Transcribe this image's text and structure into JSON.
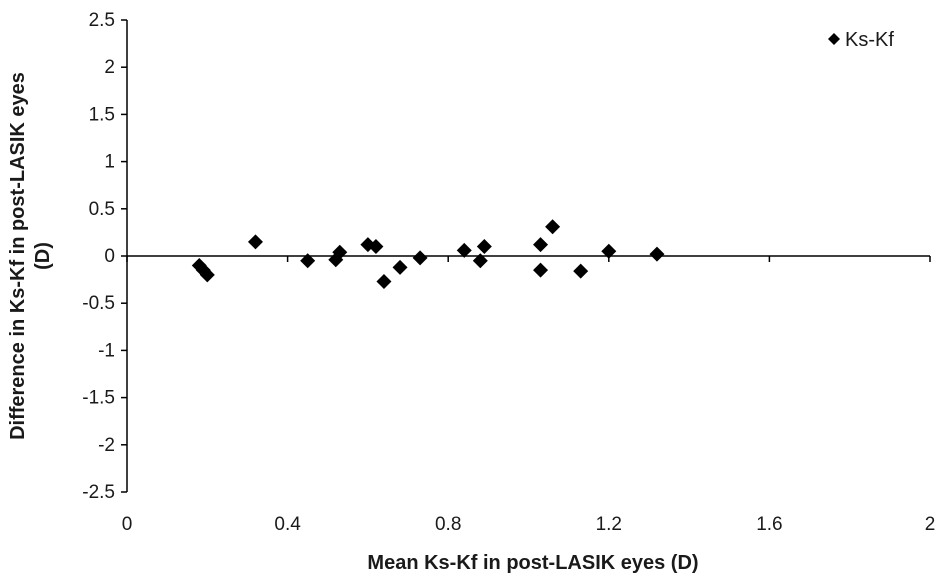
{
  "chart_data": {
    "type": "scatter",
    "title": "",
    "xlabel": "Mean Ks-Kf in post-LASIK eyes (D)",
    "ylabel_lines": [
      "Difference in Ks-Kf in post-LASIK eyes",
      "(D)"
    ],
    "xlim": [
      0,
      2
    ],
    "ylim": [
      -2.5,
      2.5
    ],
    "x_ticks": [
      "0",
      "0.4",
      "0.8",
      "1.2",
      "1.6",
      "2"
    ],
    "x_tick_values": [
      0,
      0.4,
      0.8,
      1.2,
      1.6,
      2
    ],
    "y_ticks": [
      "2.5",
      "2",
      "1.5",
      "1",
      "0.5",
      "0",
      "-0.5",
      "-1",
      "-1.5",
      "-2",
      "-2.5"
    ],
    "y_tick_values": [
      2.5,
      2,
      1.5,
      1,
      0.5,
      0,
      -0.5,
      -1,
      -1.5,
      -2,
      -2.5
    ],
    "grid": false,
    "legend": {
      "position": "top-right"
    },
    "series": [
      {
        "name": "Ks-Kf",
        "marker": "diamond",
        "color": "#000000",
        "points": [
          {
            "x": 0.18,
            "y": -0.1
          },
          {
            "x": 0.19,
            "y": -0.15
          },
          {
            "x": 0.2,
            "y": -0.2
          },
          {
            "x": 0.32,
            "y": 0.15
          },
          {
            "x": 0.45,
            "y": -0.05
          },
          {
            "x": 0.52,
            "y": -0.04
          },
          {
            "x": 0.53,
            "y": 0.04
          },
          {
            "x": 0.6,
            "y": 0.12
          },
          {
            "x": 0.62,
            "y": 0.1
          },
          {
            "x": 0.64,
            "y": -0.27
          },
          {
            "x": 0.68,
            "y": -0.12
          },
          {
            "x": 0.73,
            "y": -0.02
          },
          {
            "x": 0.84,
            "y": 0.06
          },
          {
            "x": 0.88,
            "y": -0.05
          },
          {
            "x": 0.89,
            "y": 0.1
          },
          {
            "x": 1.03,
            "y": 0.12
          },
          {
            "x": 1.03,
            "y": -0.15
          },
          {
            "x": 1.06,
            "y": 0.31
          },
          {
            "x": 1.13,
            "y": -0.16
          },
          {
            "x": 1.2,
            "y": 0.05
          },
          {
            "x": 1.32,
            "y": 0.02
          }
        ]
      }
    ]
  }
}
